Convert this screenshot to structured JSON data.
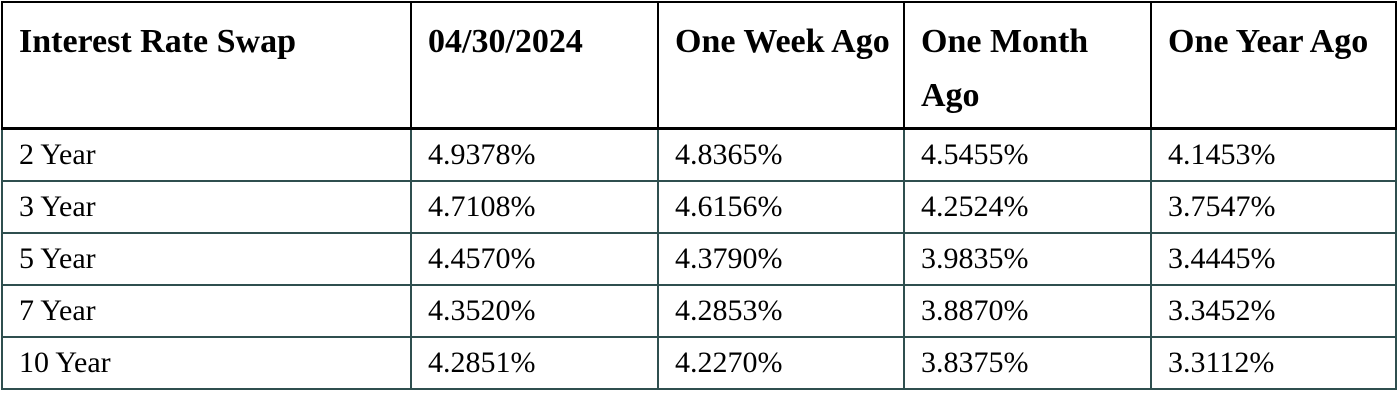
{
  "table": {
    "headers": [
      "Interest Rate Swap",
      "04/30/2024",
      "One Week Ago",
      "One Month Ago",
      "One Year Ago"
    ],
    "rows": [
      [
        "2 Year",
        "4.9378%",
        "4.8365%",
        "4.5455%",
        "4.1453%"
      ],
      [
        "3 Year",
        "4.7108%",
        "4.6156%",
        "4.2524%",
        "3.7547%"
      ],
      [
        "5 Year",
        "4.4570%",
        "4.3790%",
        "3.9835%",
        "3.4445%"
      ],
      [
        "7 Year",
        "4.3520%",
        "4.2853%",
        "3.8870%",
        "3.3452%"
      ],
      [
        "10 Year",
        "4.2851%",
        "4.2270%",
        "3.8375%",
        "3.3112%"
      ]
    ]
  },
  "colors": {
    "header_border": "#000000",
    "body_border": "#2f4f4f"
  }
}
